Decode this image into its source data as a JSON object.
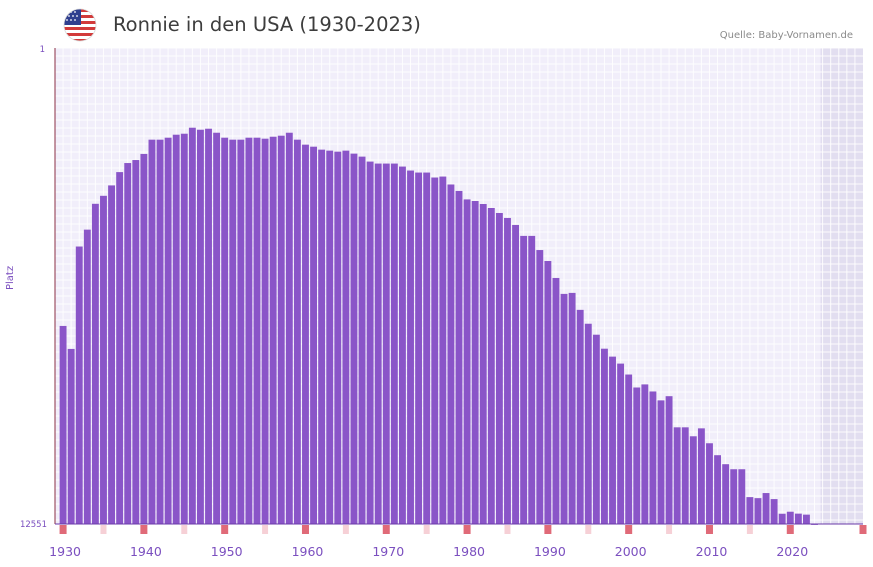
{
  "header": {
    "title": "Ronnie in den USA (1930-2023)",
    "source": "Quelle: Baby-Vornamen.de",
    "flag_icon": "us-flag-icon"
  },
  "colors": {
    "bar": "#8a55c8",
    "plot_bg": "#f1eefa",
    "future_bg": "#e2def0",
    "grid": "#ffffff",
    "axis_text": "#7b4fbf",
    "decade_marker": "#e06a78"
  },
  "chart_data": {
    "type": "bar",
    "title": "Ronnie in den USA (1930-2023)",
    "ylabel": "Platz",
    "xlabel": "",
    "y_axis_inverted": true,
    "ylim": [
      1,
      12551
    ],
    "ytick_labels": [
      "1",
      "12551"
    ],
    "xlim": [
      1929,
      2029
    ],
    "xtick_labels": [
      "1930",
      "1940",
      "1950",
      "1960",
      "1970",
      "1980",
      "1990",
      "2000",
      "2010",
      "2020"
    ],
    "future_shading_from": 2023,
    "years": [
      1930,
      1931,
      1932,
      1933,
      1934,
      1935,
      1936,
      1937,
      1938,
      1939,
      1940,
      1941,
      1942,
      1943,
      1944,
      1945,
      1946,
      1947,
      1948,
      1949,
      1950,
      1951,
      1952,
      1953,
      1954,
      1955,
      1956,
      1957,
      1958,
      1959,
      1960,
      1961,
      1962,
      1963,
      1964,
      1965,
      1966,
      1967,
      1968,
      1969,
      1970,
      1971,
      1972,
      1973,
      1974,
      1975,
      1976,
      1977,
      1978,
      1979,
      1980,
      1981,
      1982,
      1983,
      1984,
      1985,
      1986,
      1987,
      1988,
      1989,
      1990,
      1991,
      1992,
      1993,
      1994,
      1995,
      1996,
      1997,
      1998,
      1999,
      2000,
      2001,
      2002,
      2003,
      2004,
      2005,
      2006,
      2007,
      2008,
      2009,
      2010,
      2011,
      2012,
      2013,
      2014,
      2015,
      2016,
      2017,
      2018,
      2019,
      2020,
      2021,
      2022,
      2023
    ],
    "values": [
      7329,
      7935,
      5235,
      4790,
      4109,
      3898,
      3624,
      3273,
      3034,
      2955,
      2794,
      2418,
      2418,
      2366,
      2287,
      2261,
      2103,
      2156,
      2129,
      2235,
      2366,
      2418,
      2418,
      2366,
      2366,
      2392,
      2340,
      2313,
      2235,
      2418,
      2549,
      2603,
      2681,
      2707,
      2734,
      2707,
      2786,
      2865,
      2996,
      3048,
      3048,
      3048,
      3127,
      3232,
      3285,
      3285,
      3416,
      3390,
      3599,
      3770,
      3993,
      4035,
      4114,
      4219,
      4351,
      4482,
      4666,
      4955,
      4955,
      5328,
      5617,
      6064,
      6484,
      6458,
      6905,
      7271,
      7560,
      7929,
      8138,
      8322,
      8610,
      8952,
      8870,
      9057,
      9291,
      9181,
      10002,
      10002,
      10238,
      10029,
      10422,
      10737,
      10974,
      11107,
      11107,
      11842,
      11869,
      11735,
      11894,
      12281,
      12227,
      12278,
      12304,
      12548
    ],
    "decade_markers": [
      1930,
      1940,
      1950,
      1960,
      1970,
      1980,
      1990,
      2000,
      2010,
      2020,
      2029
    ],
    "light_markers": [
      1935,
      1945,
      1955,
      1965,
      1975,
      1985,
      1995,
      2005,
      2015
    ]
  }
}
